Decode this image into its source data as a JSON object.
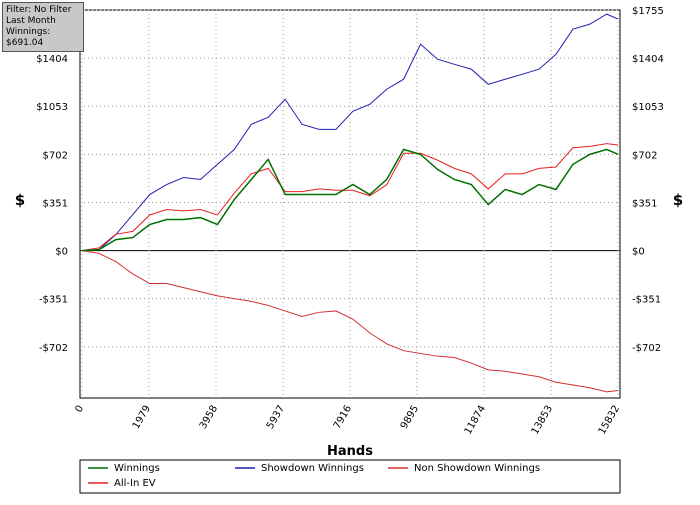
{
  "info": {
    "filter": "Filter: No Filter",
    "period": "Last Month",
    "winnings": "Winnings: $691.04"
  },
  "chart_data": {
    "type": "line",
    "x_label": "Hands",
    "y_label": "$",
    "y2_label": "$",
    "x": [
      0,
      500,
      1000,
      1500,
      2000,
      2500,
      3000,
      3500,
      4000,
      4500,
      5000,
      5500,
      6000,
      6500,
      7000,
      7500,
      8000,
      8500,
      9000,
      9500,
      10000,
      10500,
      11000,
      11500,
      12000,
      12500,
      13000,
      13500,
      14000,
      14500,
      15000,
      15500,
      15832
    ],
    "series": [
      {
        "name": "Winnings",
        "color": "#007000",
        "values": [
          0,
          7,
          80,
          95,
          190,
          227,
          227,
          241,
          190,
          373,
          519,
          665,
          409,
          409,
          409,
          409,
          482,
          409,
          519,
          738,
          702,
          592,
          519,
          482,
          336,
          446,
          409,
          482,
          446,
          629,
          702,
          738,
          702
        ]
      },
      {
        "name": "Showdown Winnings",
        "color": "#2020b0",
        "values": [
          0,
          7,
          117,
          263,
          409,
          482,
          533,
          519,
          629,
          738,
          921,
          972,
          1104,
          921,
          884,
          884,
          1016,
          1067,
          1177,
          1250,
          1506,
          1396,
          1359,
          1323,
          1213,
          1250,
          1286,
          1323,
          1432,
          1615,
          1652,
          1725,
          1689
        ]
      },
      {
        "name": "Non Showdown Winnings",
        "color": "#d03030",
        "values": [
          0,
          -20,
          -80,
          -170,
          -240,
          -240,
          -270,
          -300,
          -330,
          -350,
          -370,
          -400,
          -440,
          -480,
          -450,
          -440,
          -500,
          -600,
          -680,
          -730,
          -750,
          -770,
          -780,
          -820,
          -870,
          -880,
          -900,
          -920,
          -960,
          -980,
          -1000,
          -1030,
          -1020
        ]
      },
      {
        "name": "All-In EV",
        "color": "#e82020",
        "values": [
          0,
          20,
          120,
          140,
          260,
          300,
          290,
          300,
          260,
          420,
          560,
          600,
          430,
          430,
          450,
          440,
          440,
          400,
          480,
          710,
          710,
          660,
          600,
          560,
          450,
          560,
          560,
          600,
          610,
          750,
          760,
          780,
          770
        ]
      }
    ],
    "xlim": [
      0,
      15832
    ],
    "xticks": [
      0,
      1979,
      3958,
      5937,
      7916,
      9895,
      11874,
      13853,
      15832
    ],
    "ylim": [
      -1075,
      1755
    ],
    "yticks": [
      {
        "value": -702,
        "label": "-$702"
      },
      {
        "value": -351,
        "label": "-$351"
      },
      {
        "value": 0,
        "label": "$0"
      },
      {
        "value": 351,
        "label": "$351"
      },
      {
        "value": 702,
        "label": "$702"
      },
      {
        "value": 1053,
        "label": "$1053"
      },
      {
        "value": 1404,
        "label": "$1404"
      },
      {
        "value": 1755,
        "label": "$1755"
      }
    ],
    "grid": true
  }
}
